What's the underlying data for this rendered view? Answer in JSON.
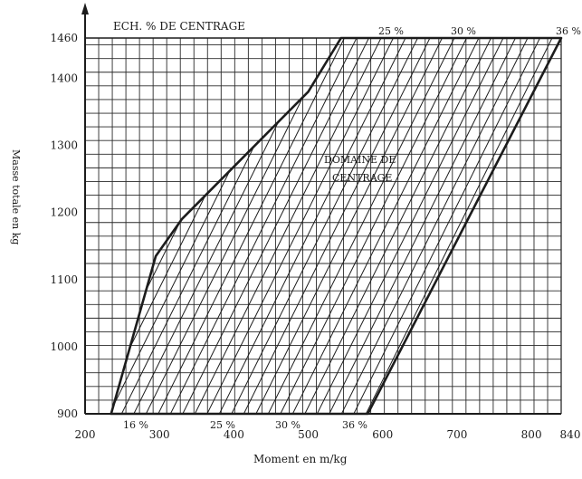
{
  "chart_data": {
    "type": "line",
    "title": "ECH. % DE CENTRAGE",
    "xlabel": "Moment en m/kg",
    "ylabel": "Masse totale en kg",
    "xlim": [
      200,
      840
    ],
    "ylim": [
      900,
      1460
    ],
    "x_ticks": [
      "200",
      "300",
      "400",
      "500",
      "600",
      "700",
      "800",
      "840"
    ],
    "y_ticks": [
      "900",
      "1000",
      "1100",
      "1200",
      "1300",
      "1400",
      "1460"
    ],
    "grid": true,
    "percent_labels_bottom": [
      "16 %",
      "25 %",
      "30 %",
      "36 %"
    ],
    "percent_labels_top": [
      "25 %",
      "30 %",
      "36 %"
    ],
    "region_label": [
      "DOMAINE DE",
      "CENTRAGE"
    ],
    "envelope": [
      {
        "x": 235,
        "y": 900
      },
      {
        "x": 295,
        "y": 1135
      },
      {
        "x": 330,
        "y": 1190
      },
      {
        "x": 500,
        "y": 1380
      },
      {
        "x": 544,
        "y": 1460
      },
      {
        "x": 840,
        "y": 1460
      },
      {
        "x": 580,
        "y": 900
      }
    ]
  }
}
